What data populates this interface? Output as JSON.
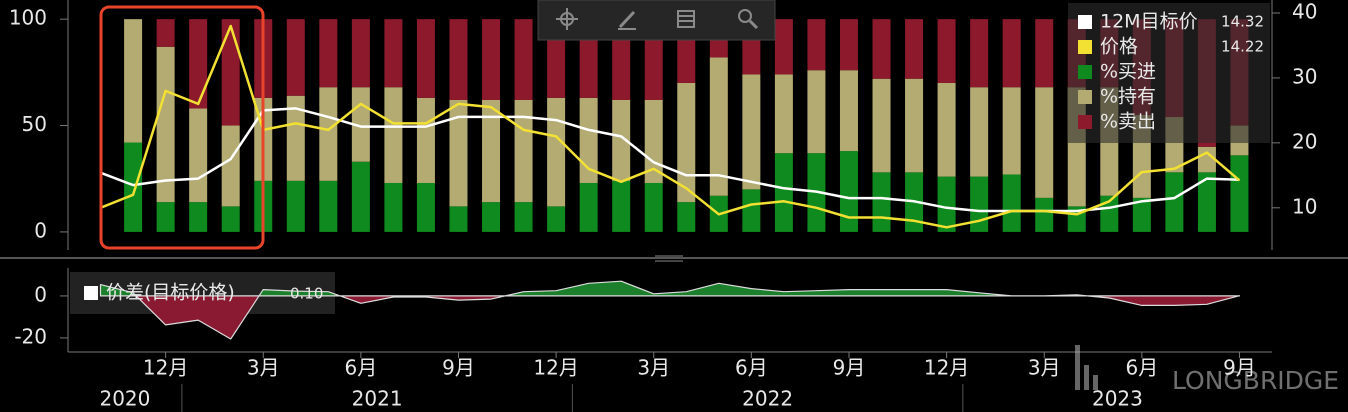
{
  "chart_data": [
    {
      "type": "bar",
      "stacked": true,
      "x": [
        "2020-10",
        "2020-11",
        "2020-12",
        "2021-01",
        "2021-02",
        "2021-03",
        "2021-04",
        "2021-05",
        "2021-06",
        "2021-07",
        "2021-08",
        "2021-09",
        "2021-10",
        "2021-11",
        "2021-12",
        "2022-01",
        "2022-02",
        "2022-03",
        "2022-04",
        "2022-05",
        "2022-06",
        "2022-07",
        "2022-08",
        "2022-09",
        "2022-10",
        "2022-11",
        "2022-12",
        "2023-01",
        "2023-02",
        "2023-03",
        "2023-04",
        "2023-05",
        "2023-06",
        "2023-07",
        "2023-08",
        "2023-09"
      ],
      "xlim": [
        "2020-09",
        "2023-10"
      ],
      "ylim": [
        -8.5,
        109
      ],
      "yticks": [
        0,
        50,
        100
      ],
      "y2lim": [
        3.5,
        42
      ],
      "y2ticks": [
        10,
        20,
        30,
        40
      ],
      "series": [
        {
          "name": "%买进",
          "type": "bar",
          "color": "#0f8a1e",
          "values": [
            null,
            42,
            14,
            14,
            12,
            24,
            24,
            24,
            33,
            23,
            23,
            12,
            14,
            14,
            12,
            23,
            24,
            23,
            14,
            17,
            20,
            37,
            37,
            38,
            28,
            28,
            26,
            26,
            27,
            16,
            12,
            17,
            16,
            28,
            28,
            36
          ]
        },
        {
          "name": "%持有",
          "type": "bar",
          "color": "#b3ab72",
          "values": [
            null,
            58,
            73,
            44,
            38,
            39,
            40,
            44,
            35,
            45,
            40,
            50,
            48,
            48,
            51,
            40,
            38,
            39,
            56,
            65,
            54,
            37,
            39,
            38,
            44,
            44,
            44,
            42,
            41,
            52,
            56,
            51,
            39,
            26,
            12,
            14
          ]
        },
        {
          "name": "%卖出",
          "type": "bar",
          "color": "#8c1a2c",
          "values": [
            null,
            0,
            13,
            42,
            50,
            37,
            36,
            32,
            32,
            32,
            37,
            38,
            38,
            38,
            37,
            37,
            38,
            38,
            30,
            18,
            26,
            26,
            24,
            24,
            28,
            28,
            30,
            32,
            32,
            32,
            32,
            32,
            45,
            46,
            60,
            50
          ]
        },
        {
          "name": "12M目标价",
          "type": "line",
          "axis": "y2",
          "color": "#ffffff",
          "last_value": 14.32,
          "values": [
            15.4,
            13.5,
            14.2,
            14.5,
            17.5,
            25,
            25.3,
            24,
            22.5,
            22.5,
            22.5,
            24,
            24,
            24,
            23.5,
            22,
            21,
            17,
            15,
            15,
            14,
            13,
            12.5,
            11.5,
            11.5,
            11,
            10,
            9.5,
            9.5,
            9.5,
            9.5,
            10,
            11,
            11.5,
            14.5,
            14.32
          ]
        },
        {
          "name": "价格",
          "type": "line",
          "axis": "y2",
          "color": "#f2e033",
          "last_value": 14.22,
          "values": [
            10,
            12,
            28,
            26,
            38,
            22,
            23,
            22,
            26,
            23,
            23,
            26,
            25.5,
            22,
            21,
            16,
            14,
            16,
            13,
            9,
            10.5,
            11,
            10,
            8.5,
            8.5,
            8,
            7,
            8,
            9.5,
            9.5,
            9,
            11,
            15.5,
            16,
            18.5,
            14.22
          ]
        }
      ]
    },
    {
      "type": "area",
      "x": [
        "2020-10",
        "2020-11",
        "2020-12",
        "2021-01",
        "2021-02",
        "2021-03",
        "2021-04",
        "2021-05",
        "2021-06",
        "2021-07",
        "2021-08",
        "2021-09",
        "2021-10",
        "2021-11",
        "2021-12",
        "2022-01",
        "2022-02",
        "2022-03",
        "2022-04",
        "2022-05",
        "2022-06",
        "2022-07",
        "2022-08",
        "2022-09",
        "2022-10",
        "2022-11",
        "2022-12",
        "2023-01",
        "2023-02",
        "2023-03",
        "2023-04",
        "2023-05",
        "2023-06",
        "2023-07",
        "2023-08",
        "2023-09"
      ],
      "xlim": [
        "2020-09",
        "2023-10"
      ],
      "xticks": [
        {
          "value": "2020-12",
          "label": "12月"
        },
        {
          "value": "2021-03",
          "label": "3月"
        },
        {
          "value": "2021-06",
          "label": "6月"
        },
        {
          "value": "2021-09",
          "label": "9月"
        },
        {
          "value": "2021-12",
          "label": "12月"
        },
        {
          "value": "2022-03",
          "label": "3月"
        },
        {
          "value": "2022-06",
          "label": "6月"
        },
        {
          "value": "2022-09",
          "label": "9月"
        },
        {
          "value": "2022-12",
          "label": "12月"
        },
        {
          "value": "2023-03",
          "label": "3月"
        },
        {
          "value": "2023-06",
          "label": "6月"
        },
        {
          "value": "2023-09",
          "label": "9月"
        }
      ],
      "years": [
        "2020",
        "2021",
        "2022",
        "2023"
      ],
      "ylim": [
        -26.7,
        13.3
      ],
      "yticks": [
        -20,
        0
      ],
      "series": [
        {
          "name": "价差(目标价格)",
          "positive_color": "#1b7f2c",
          "negative_color": "#8a1a32",
          "last_value": {
            "value": 0.1,
            "label": "0.10"
          },
          "values": [
            5.4,
            1.5,
            -13.8,
            -11.5,
            -20.5,
            3,
            2.3,
            2,
            -3.5,
            -0.5,
            -0.5,
            -2,
            -1.5,
            2,
            2.5,
            6,
            7,
            1,
            2,
            6,
            3.5,
            2,
            2.5,
            3,
            3,
            3,
            3,
            1.5,
            0,
            0,
            0.5,
            -1,
            -4.5,
            -4.5,
            -4,
            0.1
          ]
        }
      ]
    }
  ],
  "watermark": "LONGBRIDGE"
}
